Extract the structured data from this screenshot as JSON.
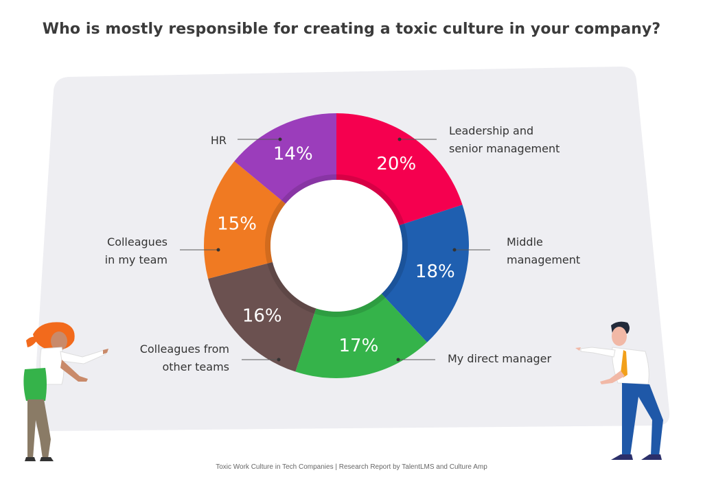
{
  "title": "Who is mostly responsible for creating a toxic culture in your company?",
  "footer": "Toxic Work Culture in Tech Companies | Research Report by TalentLMS and Culture Amp",
  "chart_data": {
    "type": "pie",
    "title": "Who is mostly responsible for creating a toxic culture in your company?",
    "unit": "%",
    "slices": [
      {
        "label": "Leadership and senior management",
        "lines": [
          "Leadership and",
          "senior management"
        ],
        "value": 20,
        "display": "20%",
        "color": "#f5004f"
      },
      {
        "label": "Middle management",
        "lines": [
          "Middle",
          "management"
        ],
        "value": 18,
        "display": "18%",
        "color": "#1f5fb0"
      },
      {
        "label": "My direct manager",
        "lines": [
          "My direct manager"
        ],
        "value": 17,
        "display": "17%",
        "color": "#35b34a"
      },
      {
        "label": "Colleagues from other teams",
        "lines": [
          "Colleagues from",
          "other teams"
        ],
        "value": 16,
        "display": "16%",
        "color": "#6b5150"
      },
      {
        "label": "Colleagues in my team",
        "lines": [
          "Colleagues",
          "in my team"
        ],
        "value": 15,
        "display": "15%",
        "color": "#f07a22"
      },
      {
        "label": "HR",
        "lines": [
          "HR"
        ],
        "value": 14,
        "display": "14%",
        "color": "#9b3dbb"
      }
    ]
  }
}
